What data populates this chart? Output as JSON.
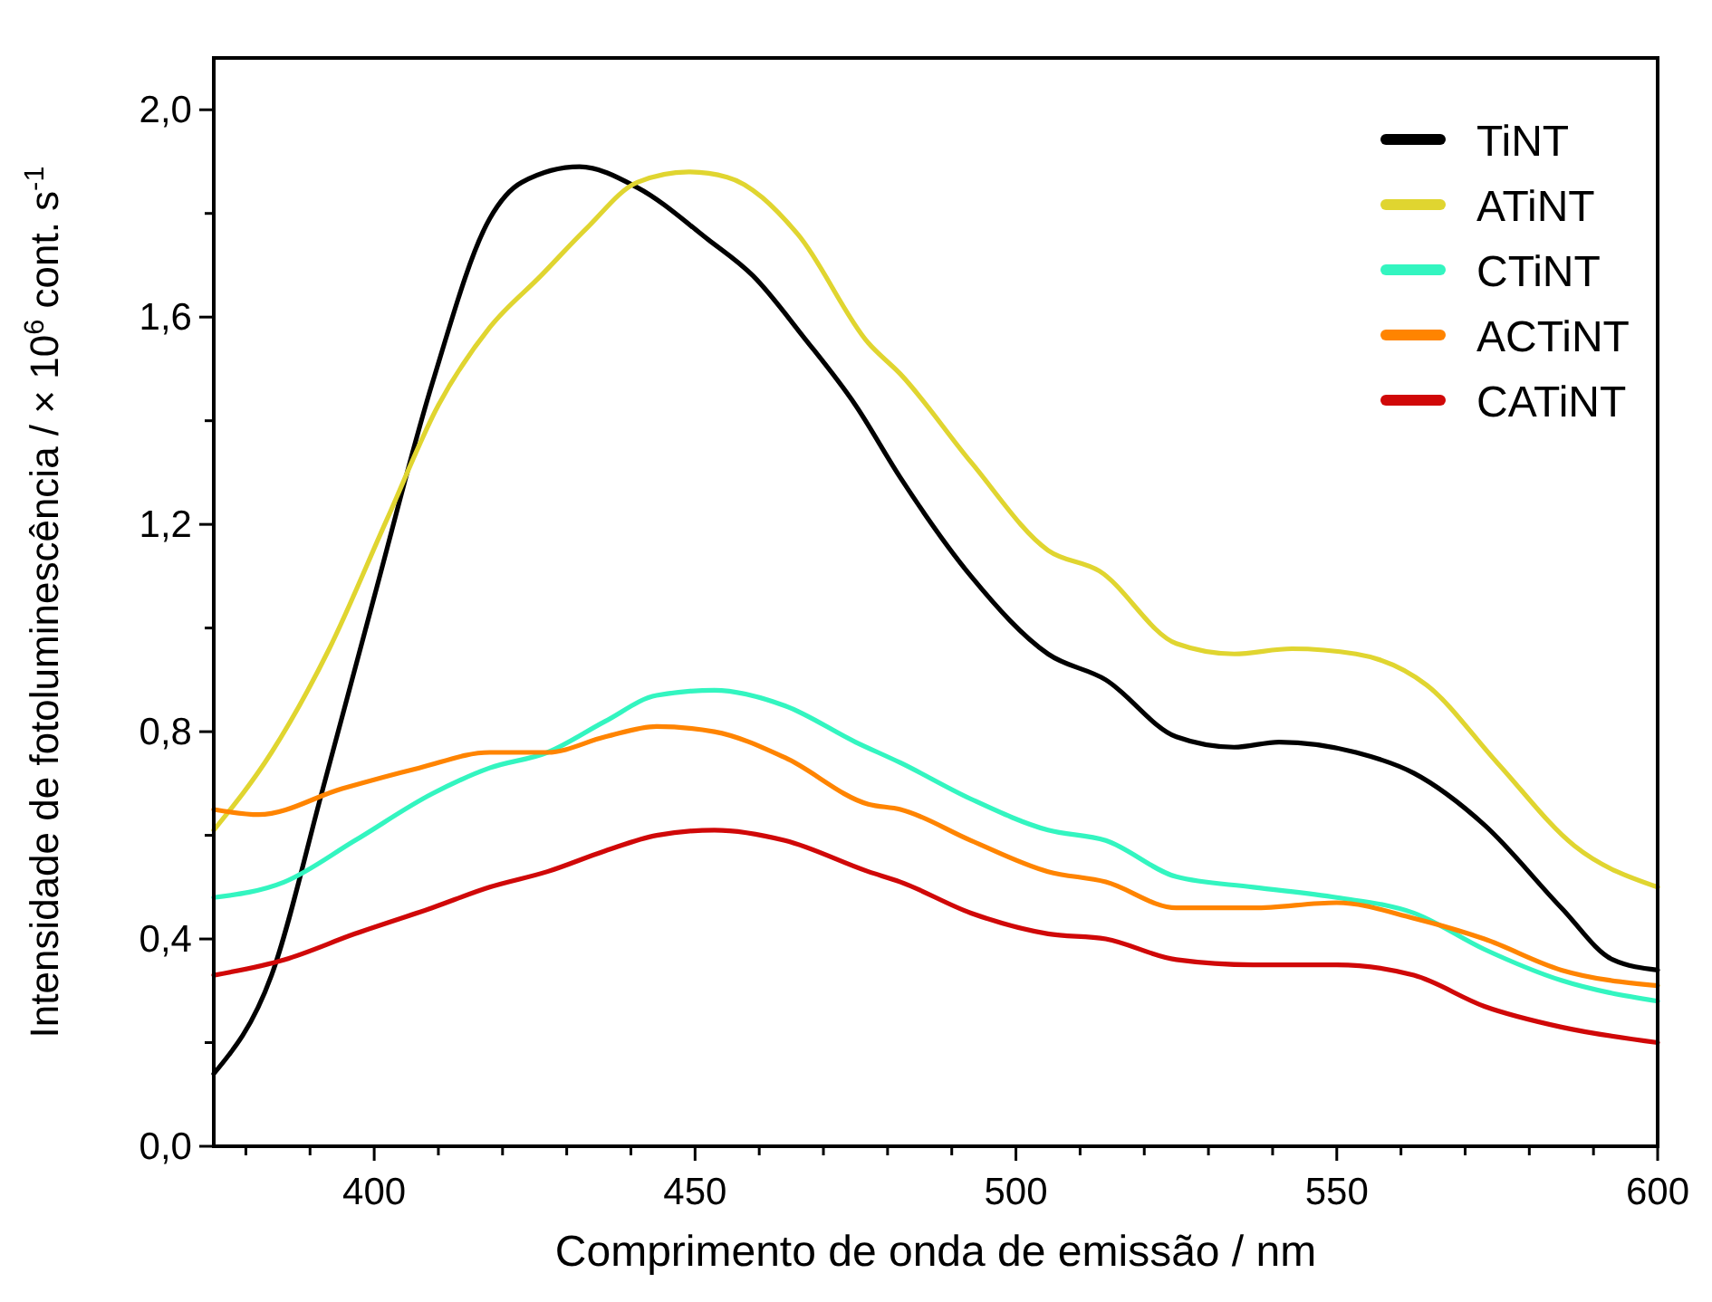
{
  "chart_data": {
    "type": "line",
    "xlabel": "Comprimento de onda de emissão / nm",
    "ylabel": "Intensidade de fotoluminescência / × 10$^{6}$ cont. s$^{-1}$",
    "xlim": [
      375,
      600
    ],
    "ylim": [
      0,
      2.1
    ],
    "xticks": [
      {
        "value": 380,
        "label": null
      },
      {
        "value": 390,
        "label": null
      },
      400,
      {
        "value": 410,
        "label": null
      },
      {
        "value": 420,
        "label": null
      },
      {
        "value": 430,
        "label": null
      },
      {
        "value": 440,
        "label": null
      },
      450,
      {
        "value": 460,
        "label": null
      },
      {
        "value": 470,
        "label": null
      },
      {
        "value": 480,
        "label": null
      },
      {
        "value": 490,
        "label": null
      },
      500,
      {
        "value": 510,
        "label": null
      },
      {
        "value": 520,
        "label": null
      },
      {
        "value": 530,
        "label": null
      },
      {
        "value": 540,
        "label": null
      },
      550,
      {
        "value": 560,
        "label": null
      },
      {
        "value": 570,
        "label": null
      },
      {
        "value": 580,
        "label": null
      },
      {
        "value": 590,
        "label": null
      },
      600
    ],
    "yticks": [
      {
        "value": 0,
        "label": "0,0"
      },
      {
        "value": 0.2,
        "label": null
      },
      {
        "value": 0.4,
        "label": "0,4"
      },
      {
        "value": 0.6,
        "label": null
      },
      {
        "value": 0.8,
        "label": "0,8"
      },
      {
        "value": 1.0,
        "label": null
      },
      {
        "value": 1.2,
        "label": "1,2"
      },
      {
        "value": 1.4,
        "label": null
      },
      {
        "value": 1.6,
        "label": "1,6"
      },
      {
        "value": 1.8,
        "label": null
      },
      {
        "value": 2.0,
        "label": "2,0"
      }
    ],
    "grid": false,
    "legend": "top right",
    "marker": "none",
    "line_style": "solid",
    "series": [
      {
        "name": "TiNT",
        "color": "#000000",
        "x": [
          375,
          384,
          392,
          400,
          409,
          418,
          423,
          432,
          441,
          452,
          459,
          467,
          475,
          482,
          493,
          505,
          514,
          525,
          534,
          541,
          553,
          562,
          573,
          585,
          593,
          600
        ],
        "values": [
          0.14,
          0.33,
          0.69,
          1.06,
          1.47,
          1.79,
          1.86,
          1.89,
          1.85,
          1.75,
          1.68,
          1.56,
          1.43,
          1.29,
          1.1,
          0.95,
          0.9,
          0.79,
          0.77,
          0.78,
          0.76,
          0.72,
          0.62,
          0.46,
          0.36,
          0.34
        ]
      },
      {
        "name": "ATiNT",
        "color": "#e0d530",
        "x": [
          375,
          384,
          393,
          402,
          410,
          418,
          426,
          433,
          441,
          449,
          455,
          466,
          477,
          482,
          493,
          505,
          513,
          525,
          534,
          543,
          553,
          564,
          575,
          587,
          600
        ],
        "values": [
          0.61,
          0.76,
          0.96,
          1.21,
          1.43,
          1.58,
          1.68,
          1.77,
          1.86,
          1.88,
          1.87,
          1.76,
          1.55,
          1.49,
          1.32,
          1.15,
          1.11,
          0.97,
          0.95,
          0.96,
          0.95,
          0.89,
          0.74,
          0.58,
          0.5
        ]
      },
      {
        "name": "CTiNT",
        "color": "#33f5c0",
        "x": [
          375,
          386,
          397,
          409,
          418,
          427,
          436,
          444,
          453,
          464,
          475,
          482,
          493,
          505,
          514,
          525,
          537,
          550,
          562,
          573,
          585,
          600
        ],
        "values": [
          0.48,
          0.51,
          0.59,
          0.68,
          0.73,
          0.76,
          0.82,
          0.87,
          0.88,
          0.85,
          0.78,
          0.74,
          0.67,
          0.61,
          0.59,
          0.52,
          0.5,
          0.48,
          0.45,
          0.38,
          0.32,
          0.28
        ]
      },
      {
        "name": "ACTiNT",
        "color": "#ff8400",
        "x": [
          375,
          382,
          395,
          407,
          418,
          427,
          436,
          444,
          453,
          464,
          477,
          482,
          493,
          505,
          514,
          525,
          537,
          550,
          562,
          573,
          585,
          600
        ],
        "values": [
          0.65,
          0.64,
          0.69,
          0.73,
          0.76,
          0.76,
          0.79,
          0.81,
          0.8,
          0.75,
          0.66,
          0.65,
          0.59,
          0.53,
          0.51,
          0.46,
          0.46,
          0.47,
          0.44,
          0.4,
          0.34,
          0.31
        ]
      },
      {
        "name": "CATiNT",
        "color": "#d00808",
        "x": [
          375,
          386,
          397,
          409,
          418,
          427,
          436,
          444,
          453,
          464,
          477,
          482,
          493,
          505,
          514,
          525,
          537,
          550,
          562,
          573,
          585,
          600
        ],
        "values": [
          0.33,
          0.36,
          0.41,
          0.46,
          0.5,
          0.53,
          0.57,
          0.6,
          0.61,
          0.59,
          0.53,
          0.51,
          0.45,
          0.41,
          0.4,
          0.36,
          0.35,
          0.35,
          0.33,
          0.27,
          0.23,
          0.2
        ]
      }
    ]
  }
}
